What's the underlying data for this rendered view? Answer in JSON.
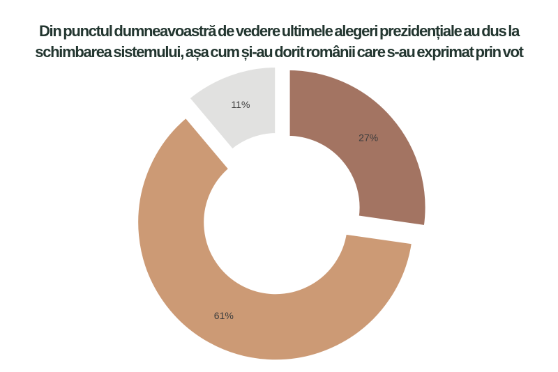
{
  "page": {
    "background": "#ffffff"
  },
  "title": {
    "line1": "Din punctul dumneavoastră de vedere ultimele alegeri prezidențiale au dus la",
    "line2": "schimbarea sistemului, așa cum și-au dorit românii care s-au exprimat prin vot",
    "color": "#233630"
  },
  "chart_data": {
    "type": "pie",
    "subtype": "donut",
    "title": "Din punctul dumneavoastră de vedere ultimele alegeri prezidențiale au dus la schimbarea sistemului, așa cum și-au dorit românii care s-au exprimat prin vot",
    "direction": "clockwise",
    "start_angle_deg": 0,
    "inner_radius_ratio": 0.5,
    "explode": true,
    "legend": "none",
    "label_color": "#3d3d3d",
    "slices": [
      {
        "label": "27%",
        "value": 27,
        "color": "#a37462"
      },
      {
        "label": "61%",
        "value": 61,
        "color": "#cc9a75"
      },
      {
        "label": "11%",
        "value": 11,
        "color": "#e1e1e0"
      }
    ]
  }
}
